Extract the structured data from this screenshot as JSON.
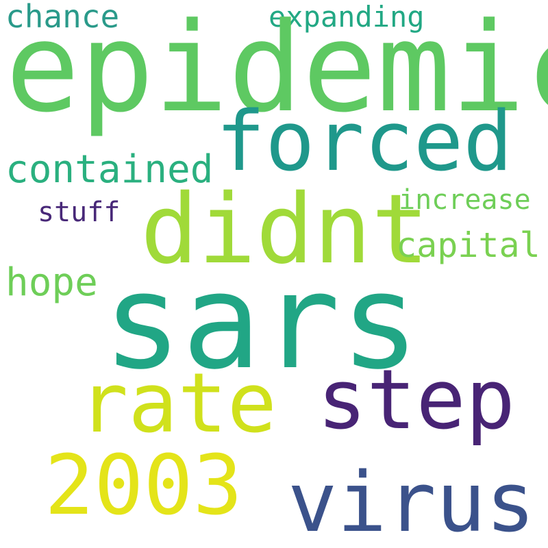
{
  "words": {
    "sars": "sars",
    "epidemic": "epidemic",
    "didnt": "didnt",
    "forced": "forced",
    "rate": "rate",
    "step": "step",
    "year_2003": "2003",
    "virus": "virus",
    "contained": "contained",
    "hope": "hope",
    "capital": "capital",
    "chance": "chance",
    "expanding": "expanding",
    "increase": "increase",
    "stuff": "stuff"
  },
  "colors": {
    "sars": "#21a685",
    "epidemic": "#5ec962",
    "didnt": "#a0da39",
    "forced": "#1f988b",
    "rate": "#d0e11c",
    "step": "#482475",
    "year_2003": "#e4e419",
    "virus": "#3b528b",
    "contained": "#2ab07f",
    "hope": "#6ece58",
    "capital": "#7ad151",
    "chance": "#2a9a8a",
    "expanding": "#22a884",
    "increase": "#6ece58",
    "stuff": "#482878"
  }
}
